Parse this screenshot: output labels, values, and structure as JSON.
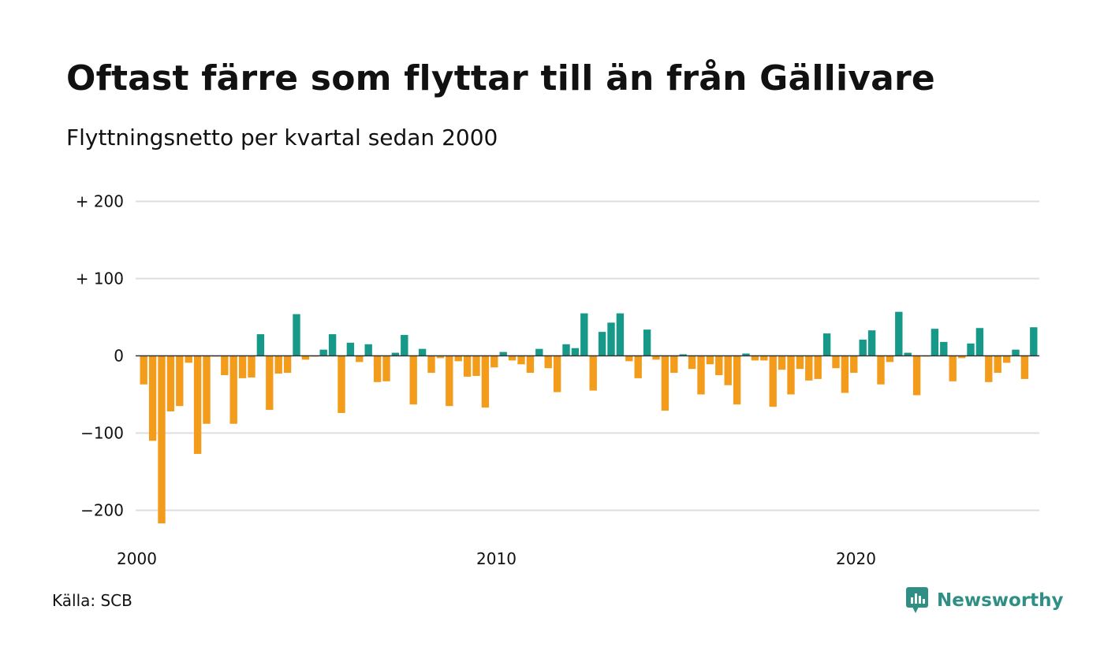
{
  "colors": {
    "positive": "#17998a",
    "negative": "#f39c1c",
    "grid": "#dedede",
    "brand": "#2f8f84"
  },
  "header": {
    "title": "Oftast färre som flyttar till än från Gällivare",
    "subtitle": "Flyttningsnetto per kvartal sedan 2000"
  },
  "footer": {
    "source": "Källa: SCB",
    "brand": "Newsworthy",
    "brand_icon": "newsworthy-logo-icon"
  },
  "chart_data": {
    "type": "bar",
    "start_year": 2000,
    "quarters_per_year": 4,
    "ylim": [
      -220,
      200
    ],
    "yticks": [
      {
        "value": 200,
        "label": "+ 200"
      },
      {
        "value": 100,
        "label": "+ 100"
      },
      {
        "value": 0,
        "label": "0"
      },
      {
        "value": -100,
        "label": "−100"
      },
      {
        "value": -200,
        "label": "−200"
      }
    ],
    "xticks": [
      {
        "value": 2000,
        "label": "2000"
      },
      {
        "value": 2010,
        "label": "2010"
      },
      {
        "value": 2020,
        "label": "2020"
      }
    ],
    "grid": true,
    "values": [
      -37,
      -110,
      -217,
      -72,
      -65,
      -9,
      -127,
      -88,
      -1,
      -25,
      -88,
      -29,
      -28,
      28,
      -70,
      -23,
      -22,
      54,
      -5,
      -1,
      8,
      28,
      -74,
      17,
      -8,
      15,
      -34,
      -33,
      4,
      27,
      -63,
      9,
      -22,
      -3,
      -65,
      -7,
      -27,
      -26,
      -67,
      -15,
      5,
      -6,
      -11,
      -22,
      9,
      -16,
      -47,
      15,
      10,
      55,
      -45,
      31,
      43,
      55,
      -7,
      -29,
      34,
      -5,
      -71,
      -22,
      2,
      -17,
      -50,
      -11,
      -25,
      -38,
      -63,
      3,
      -6,
      -6,
      -66,
      -18,
      -50,
      -17,
      -32,
      -30,
      29,
      -16,
      -48,
      -22,
      21,
      33,
      -37,
      -8,
      57,
      4,
      -51,
      -1,
      35,
      18,
      -33,
      -3,
      16,
      36,
      -34,
      -22,
      -9,
      8,
      -30,
      37
    ]
  }
}
